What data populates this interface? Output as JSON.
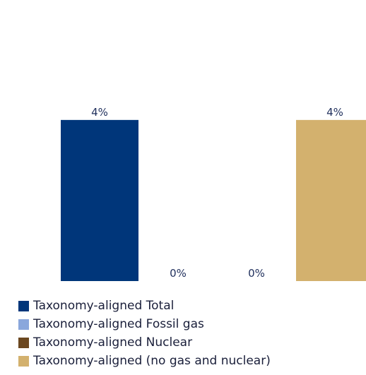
{
  "chart_data": {
    "type": "bar",
    "categories": [
      "Taxonomy-aligned Total",
      "Taxonomy-aligned Fossil gas",
      "Taxonomy-aligned Nuclear",
      "Taxonomy-aligned (no gas and nuclear)"
    ],
    "values": [
      4,
      0,
      0,
      4
    ],
    "data_labels": [
      "4%",
      "0%",
      "0%",
      "4%"
    ],
    "colors": [
      "#00367a",
      "#8aa7dc",
      "#6b4720",
      "#d3b16e"
    ],
    "ylim": [
      0,
      5.4
    ],
    "grid": false,
    "legend_position": "bottom-left"
  },
  "legend": {
    "items": [
      {
        "label": "Taxonomy-aligned Total",
        "color": "#00367a"
      },
      {
        "label": "Taxonomy-aligned Fossil gas",
        "color": "#8aa7dc"
      },
      {
        "label": "Taxonomy-aligned Nuclear",
        "color": "#6b4720"
      },
      {
        "label": "Taxonomy-aligned (no gas and nuclear)",
        "color": "#d3b16e"
      }
    ]
  }
}
